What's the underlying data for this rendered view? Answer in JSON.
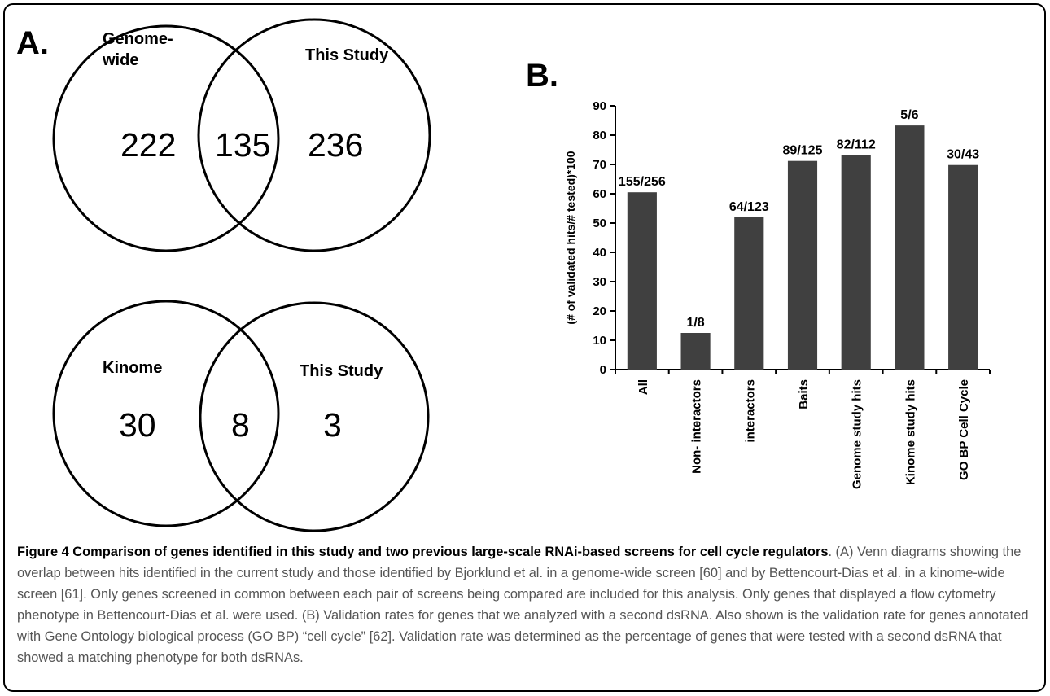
{
  "panel_a": {
    "label": "A.",
    "venn_top": {
      "left_label_1": "Genome-",
      "left_label_2": "wide",
      "right_label": "This Study",
      "left_only": "222",
      "overlap": "135",
      "right_only": "236"
    },
    "venn_bottom": {
      "left_label": "Kinome",
      "right_label": "This Study",
      "left_only": "30",
      "overlap": "8",
      "right_only": "3"
    }
  },
  "panel_b": {
    "label": "B."
  },
  "chart_data": {
    "type": "bar",
    "categories": [
      "All",
      "Non- interactors",
      "interactors",
      "Baits",
      "Genome study hits",
      "Kinome study hits",
      "GO BP Cell Cycle"
    ],
    "values": [
      60.5,
      12.5,
      52.0,
      71.2,
      73.2,
      83.3,
      69.8
    ],
    "data_labels": [
      "155/256",
      "1/8",
      "64/123",
      "89/125",
      "82/112",
      "5/6",
      "30/43"
    ],
    "ylabel": "(# of validated hits/# tested)*100",
    "xlabel": "",
    "ylim": [
      0,
      90
    ],
    "yticks": [
      0,
      10,
      20,
      30,
      40,
      50,
      60,
      70,
      80,
      90
    ],
    "bar_color": "#404040",
    "grid": false
  },
  "caption": {
    "title": "Figure 4 Comparison of genes identified in this study and two previous large-scale RNAi-based screens for cell cycle regulators",
    "body": ". (A) Venn diagrams showing the overlap between hits identified in the current study and those identified by Bjorklund et al. in a genome-wide screen [60] and by Bettencourt-Dias et al. in a kinome-wide screen [61]. Only genes screened in common between each pair of screens being compared are included for this analysis. Only genes that displayed a flow cytometry phenotype in Bettencourt-Dias et al. were used. (B) Validation rates for genes that we analyzed with a second dsRNA. Also shown is the validation rate for genes annotated with Gene Ontology biological process (GO BP) “cell cycle” [62]. Validation rate was determined as the percentage of genes that were tested with a second dsRNA that showed a matching phenotype for both dsRNAs."
  }
}
